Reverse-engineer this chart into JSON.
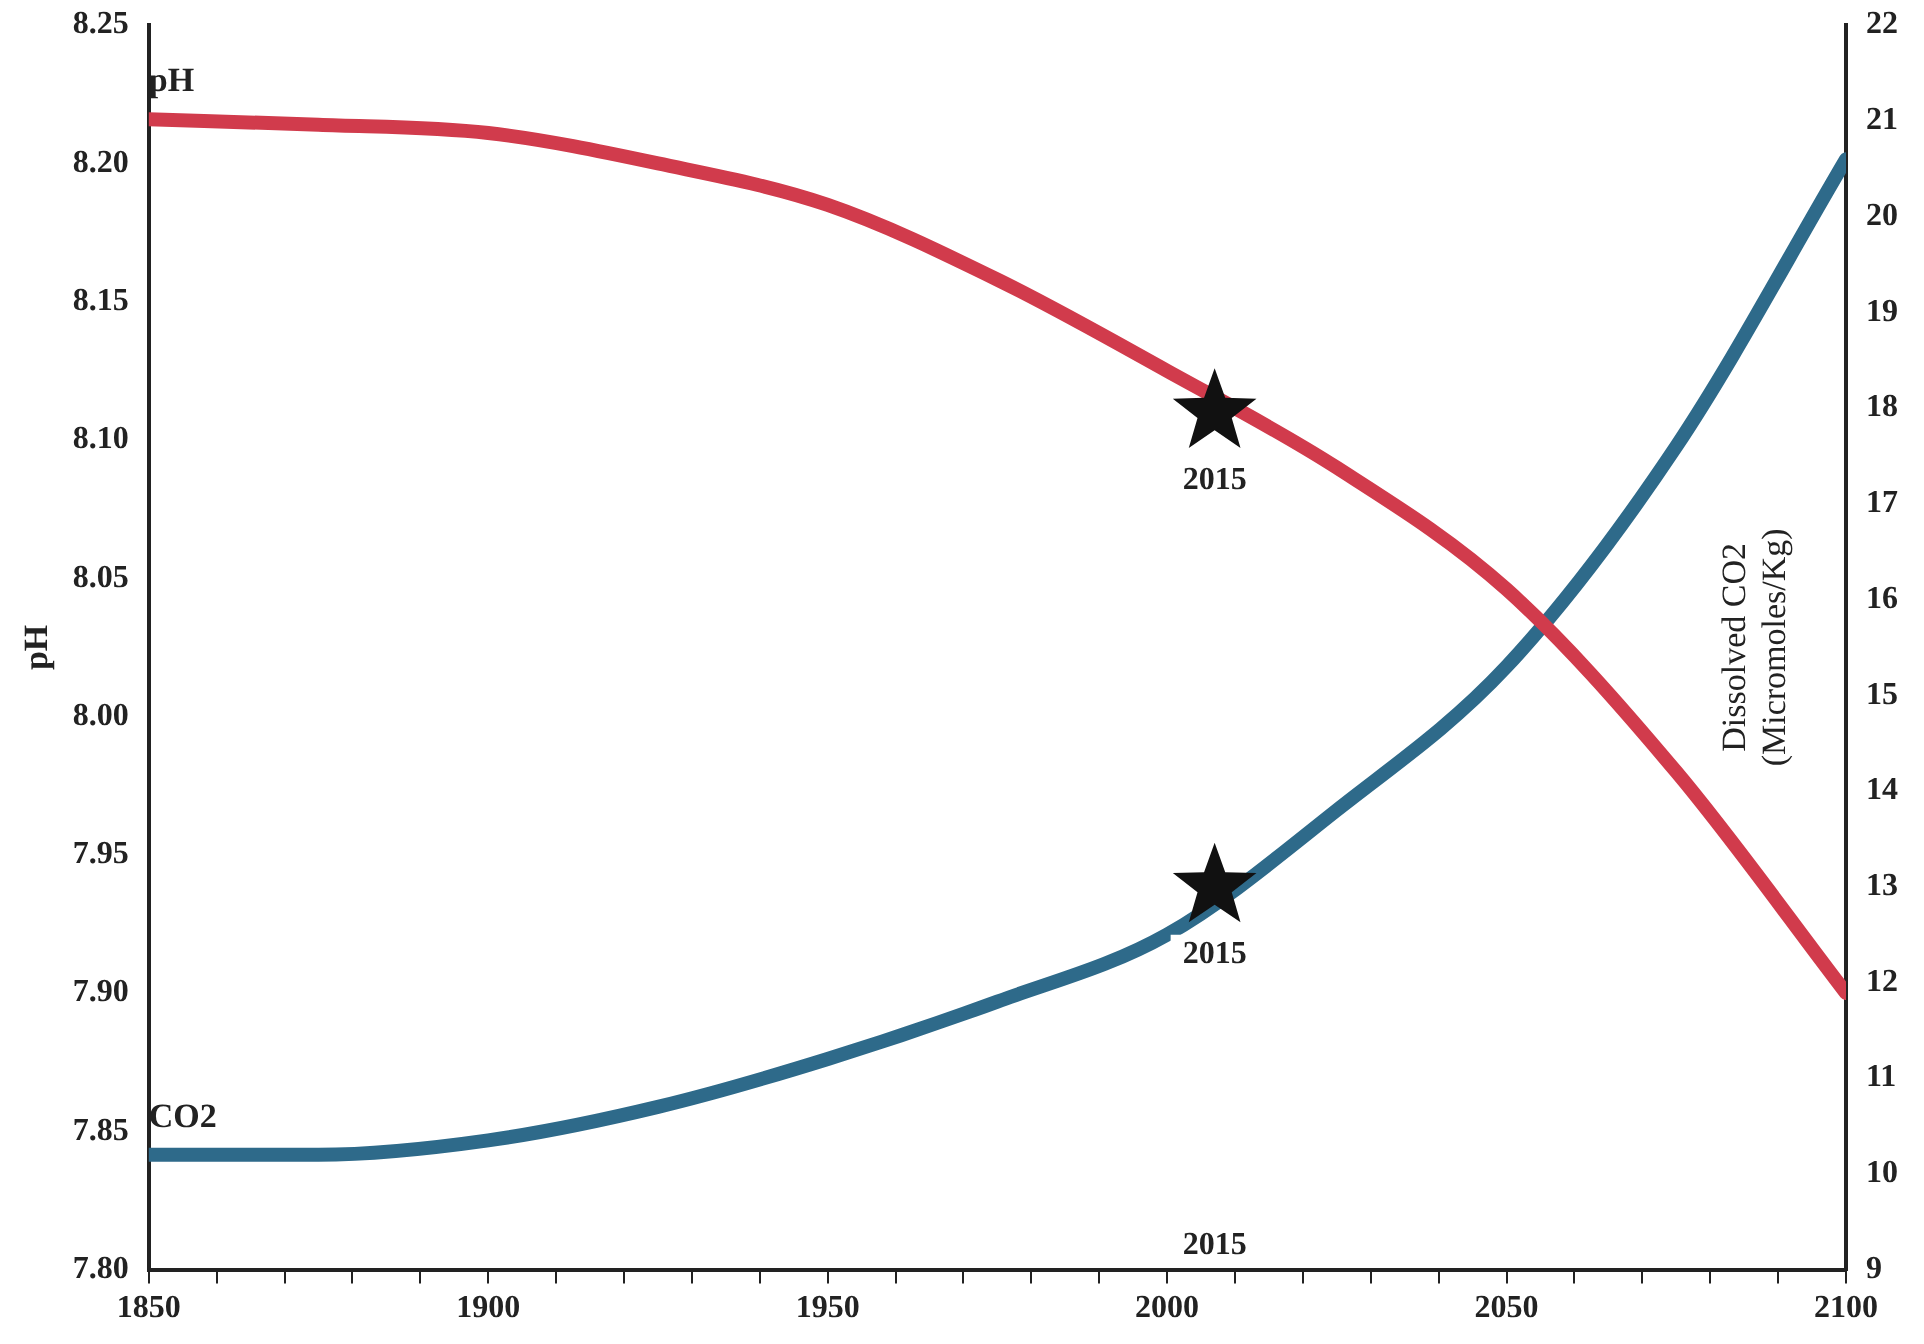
{
  "chart_data": {
    "type": "line",
    "xlabel": null,
    "ylabel": "pH",
    "y2label": "Dissolved CO2\n(Micromoles/Kg)",
    "xlim": [
      1850,
      2100
    ],
    "xticks": [
      1850,
      {
        "value": 1860,
        "label": null
      },
      {
        "value": 1870,
        "label": null
      },
      {
        "value": 1880,
        "label": null
      },
      {
        "value": 1890,
        "label": null
      },
      1900,
      {
        "value": 1910,
        "label": null
      },
      {
        "value": 1920,
        "label": null
      },
      {
        "value": 1930,
        "label": null
      },
      {
        "value": 1940,
        "label": null
      },
      1950,
      {
        "value": 1960,
        "label": null
      },
      {
        "value": 1970,
        "label": null
      },
      {
        "value": 1980,
        "label": null
      },
      {
        "value": 1990,
        "label": null
      },
      2000,
      {
        "value": 2010,
        "label": null
      },
      {
        "value": 2020,
        "label": null
      },
      {
        "value": 2030,
        "label": null
      },
      {
        "value": 2040,
        "label": null
      },
      2050,
      {
        "value": 2060,
        "label": null
      },
      {
        "value": 2070,
        "label": null
      },
      {
        "value": 2080,
        "label": null
      },
      {
        "value": 2090,
        "label": null
      },
      2100
    ],
    "ylim": [
      7.8,
      8.25
    ],
    "yticks": [
      {
        "value": 7.8,
        "label": "7.80"
      },
      7.85,
      {
        "value": 7.9,
        "label": "7.90"
      },
      7.95,
      {
        "value": 8.0,
        "label": "8.00"
      },
      8.05,
      {
        "value": 8.1,
        "label": "8.10"
      },
      8.15,
      {
        "value": 8.2,
        "label": "8.20"
      },
      8.25
    ],
    "y2lim": [
      9,
      22
    ],
    "y2ticks": [
      9,
      10,
      11,
      12,
      13,
      14,
      15,
      16,
      17,
      18,
      19,
      20,
      21,
      22
    ],
    "grid": false,
    "legend": false,
    "marker": "none",
    "line_style": "solid",
    "series": [
      {
        "name": "pH",
        "type": "line",
        "axis": "y",
        "color": "#d13b4c",
        "x": [
          1850,
          1875,
          1900,
          1925,
          1950,
          1975,
          2000,
          2025,
          2050,
          2075,
          2100
        ],
        "values": [
          8.216,
          8.214,
          8.211,
          8.2,
          8.185,
          8.158,
          8.125,
          8.09,
          8.046,
          7.98,
          7.9
        ]
      },
      {
        "name": "CO2",
        "type": "line",
        "axis": "y2",
        "color": "#2e6a8a",
        "x": [
          1850,
          1875,
          1900,
          1925,
          1950,
          1975,
          2000,
          2025,
          2050,
          2075,
          2100
        ],
        "values": [
          10.2,
          10.2,
          10.35,
          10.7,
          11.2,
          11.8,
          12.5,
          13.8,
          15.3,
          17.6,
          20.6
        ]
      },
      {
        "type": "scatter",
        "axis": "y",
        "marker": "star",
        "color": "#111111",
        "x": [
          2007
        ],
        "values": [
          8.11
        ]
      },
      {
        "type": "scatter",
        "axis": "y2",
        "marker": "star",
        "color": "#111111",
        "x": [
          2007
        ],
        "values": [
          13.0
        ]
      }
    ],
    "annotations": [
      "2015",
      "2015",
      "2015"
    ]
  }
}
